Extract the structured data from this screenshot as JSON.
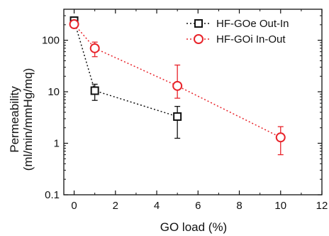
{
  "chart_data": {
    "type": "scatter",
    "xlabel": "GO load (%)",
    "ylabel_line1": "Permeability",
    "ylabel_line2": "(ml/min/mmHg/mq)",
    "xlim": [
      -0.5,
      12
    ],
    "ylim": [
      0.1,
      400
    ],
    "yscale": "log",
    "x_ticks": [
      0,
      2,
      4,
      6,
      8,
      10,
      12
    ],
    "x_tick_labels": [
      "0",
      "2",
      "4",
      "6",
      "8",
      "10",
      "12"
    ],
    "y_ticks": [
      0.1,
      1,
      10,
      100
    ],
    "y_tick_labels": [
      "0.1",
      "1",
      "10",
      "100"
    ],
    "legend_position": "top-right",
    "grid": false,
    "series": [
      {
        "name": "HF-GOe Out-In",
        "color": "#111111",
        "marker": "square",
        "line_style": "dotted",
        "x": [
          0,
          1,
          5
        ],
        "y": [
          240,
          10.5,
          3.3
        ],
        "err_low": [
          200,
          6.8,
          1.25
        ],
        "err_high": [
          275,
          14,
          5.2
        ]
      },
      {
        "name": "HF-GOi In-Out",
        "color": "#e8232a",
        "marker": "circle",
        "line_style": "dotted",
        "x": [
          0,
          1,
          5,
          10
        ],
        "y": [
          205,
          70,
          13,
          1.3
        ],
        "err_low": [
          175,
          48,
          7.5,
          0.6
        ],
        "err_high": [
          235,
          92,
          33,
          2.1
        ]
      }
    ]
  }
}
